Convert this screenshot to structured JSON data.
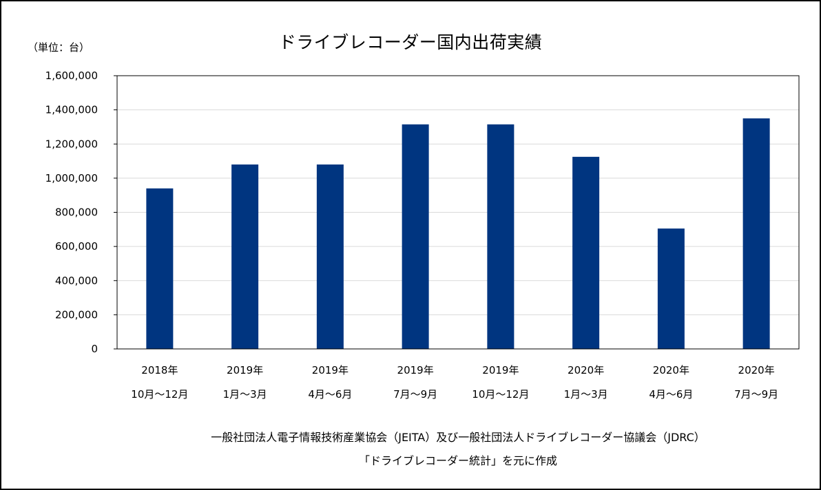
{
  "chart_data": {
    "type": "bar",
    "title": "ドライブレコーダー国内出荷実績",
    "unit_label": "（単位：台）",
    "categories": [
      [
        "2018年",
        "10月～12月"
      ],
      [
        "2019年",
        "1月～3月"
      ],
      [
        "2019年",
        "4月～6月"
      ],
      [
        "2019年",
        "7月～9月"
      ],
      [
        "2019年",
        "10月～12月"
      ],
      [
        "2020年",
        "1月～3月"
      ],
      [
        "2020年",
        "4月～6月"
      ],
      [
        "2020年",
        "7月～9月"
      ]
    ],
    "values": [
      940000,
      1080000,
      1080000,
      1315000,
      1315000,
      1125000,
      705000,
      1350000
    ],
    "ylim": [
      0,
      1600000
    ],
    "yticks": [
      "0",
      "200,000",
      "400,000",
      "600,000",
      "800,000",
      "1,000,000",
      "1,200,000",
      "1,400,000",
      "1,600,000"
    ],
    "grid": true,
    "bar_color": "#003580",
    "xlabel": "",
    "ylabel": ""
  },
  "source": {
    "line1": "一般社団法人電子情報技術産業協会（JEITA）及び一般社団法人ドライブレコーダー協議会（JDRC）",
    "line2": "「ドライブレコーダー統計」を元に作成"
  }
}
